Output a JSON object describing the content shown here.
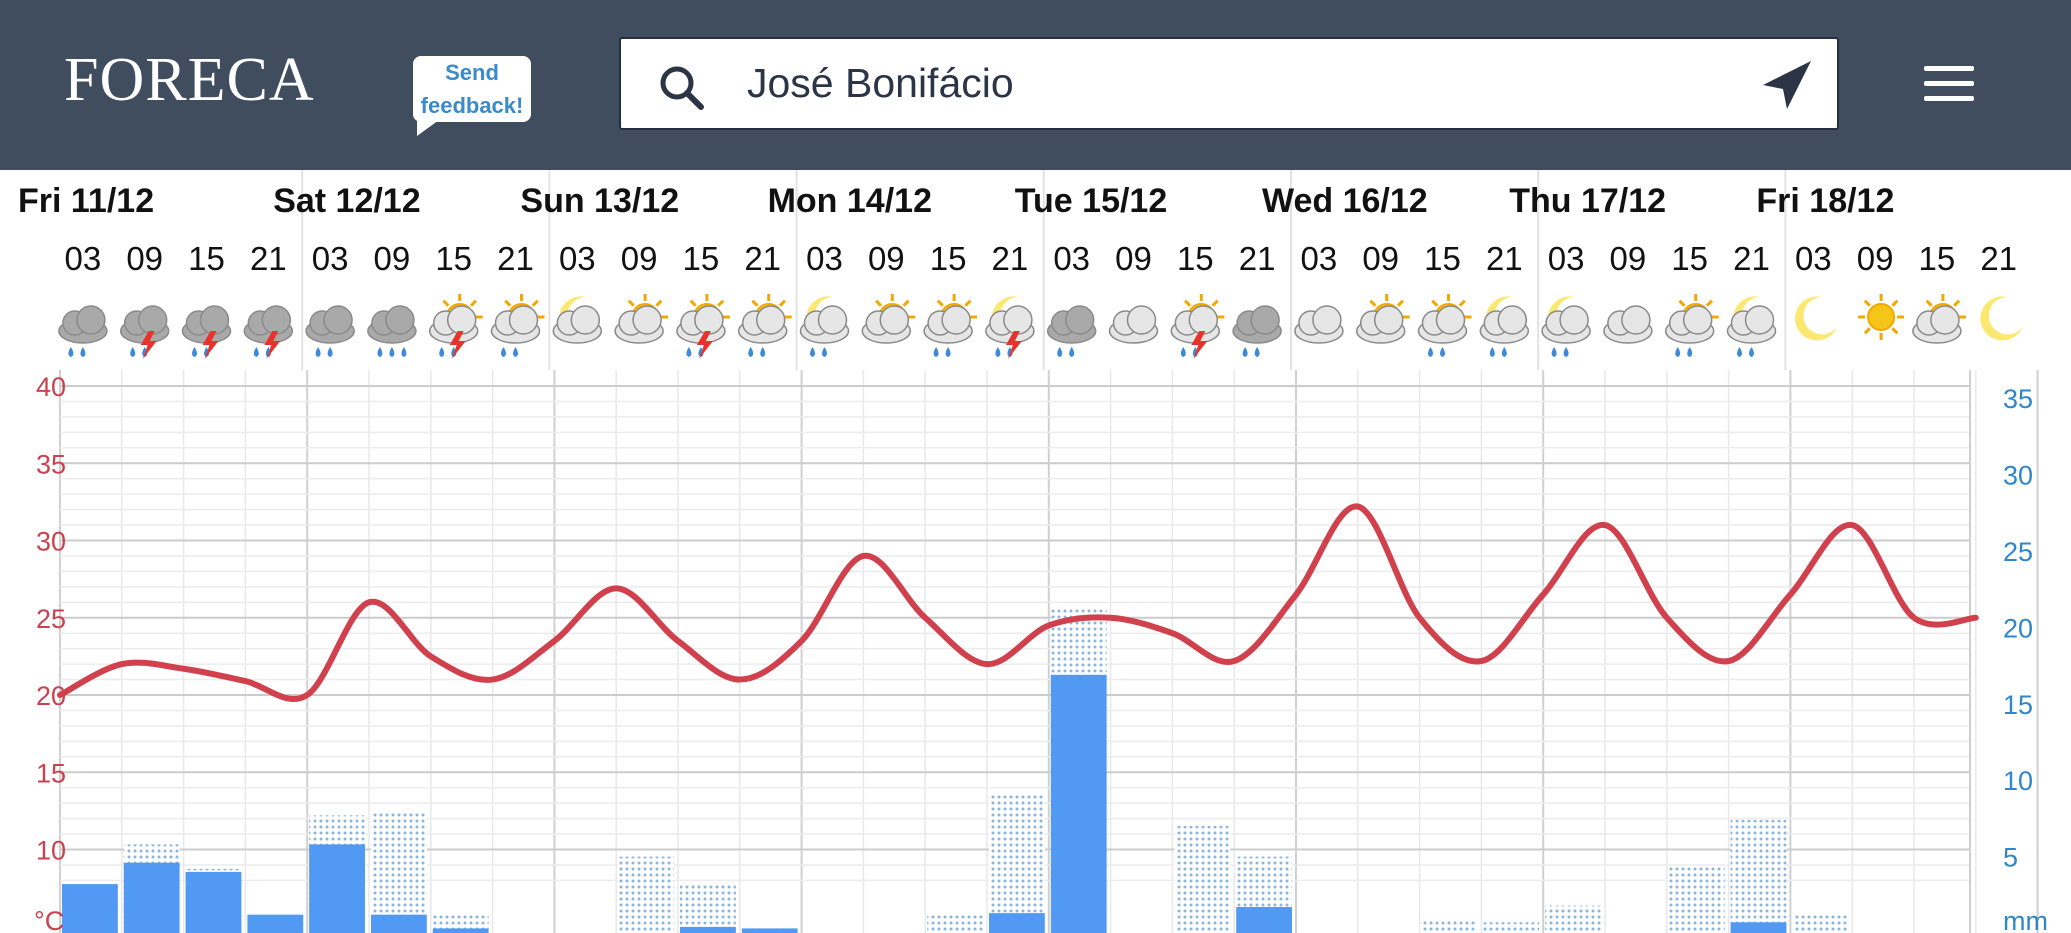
{
  "header": {
    "logo_text": "FORECA",
    "feedback_line1": "Send",
    "feedback_line2": "feedback!",
    "search_value": "José Bonifácio",
    "search_icon": "search-icon",
    "locate_icon": "location-arrow-icon",
    "menu_icon": "hamburger-menu-icon"
  },
  "colors": {
    "header_bg": "#3f4d5f",
    "temperature_line": "#d1414d",
    "precip_bar": "#5199f2",
    "precip_dotted": "#8ab6dd",
    "temp_axis": "#c8424f",
    "precip_axis": "#2f86c8"
  },
  "days": [
    {
      "label": "Fri 11/12",
      "hours": [
        "03",
        "09",
        "15",
        "21"
      ],
      "icons": [
        "cloud-rain",
        "thunderstorm-rain",
        "thunderstorm-rain",
        "thunderstorm-rain"
      ]
    },
    {
      "label": "Sat 12/12",
      "hours": [
        "03",
        "09",
        "15",
        "21"
      ],
      "icons": [
        "cloud-rain",
        "cloud-heavy-rain",
        "sun-thunder-rain",
        "sun-cloud-rain"
      ]
    },
    {
      "label": "Sun 13/12",
      "hours": [
        "03",
        "09",
        "15",
        "21"
      ],
      "icons": [
        "moon-cloud",
        "sun-cloud",
        "sun-thunder-rain",
        "sun-cloud-rain"
      ]
    },
    {
      "label": "Mon 14/12",
      "hours": [
        "03",
        "09",
        "15",
        "21"
      ],
      "icons": [
        "moon-cloud-rain",
        "sun-cloud",
        "sun-cloud-rain",
        "moon-thunder-rain"
      ]
    },
    {
      "label": "Tue 15/12",
      "hours": [
        "03",
        "09",
        "15",
        "21"
      ],
      "icons": [
        "cloud-rain",
        "cloud",
        "sun-thunder-rain",
        "cloud-rain"
      ]
    },
    {
      "label": "Wed 16/12",
      "hours": [
        "03",
        "09",
        "15",
        "21"
      ],
      "icons": [
        "cloud",
        "sun-cloud",
        "sun-cloud-rain",
        "moon-cloud-rain"
      ]
    },
    {
      "label": "Thu 17/12",
      "hours": [
        "03",
        "09",
        "15",
        "21"
      ],
      "icons": [
        "moon-cloud-rain",
        "cloud",
        "sun-cloud-rain",
        "moon-cloud-rain"
      ]
    },
    {
      "label": "Fri 18/12",
      "hours": [
        "03",
        "09",
        "15",
        "21"
      ],
      "icons": [
        "moon",
        "sun",
        "sun-cloud",
        "moon"
      ]
    }
  ],
  "chart_data": {
    "type": "line",
    "x": [
      "Fri 03",
      "Fri 09",
      "Fri 15",
      "Fri 21",
      "Sat 03",
      "Sat 09",
      "Sat 15",
      "Sat 21",
      "Sun 03",
      "Sun 09",
      "Sun 15",
      "Sun 21",
      "Mon 03",
      "Mon 09",
      "Mon 15",
      "Mon 21",
      "Tue 03",
      "Tue 09",
      "Tue 15",
      "Tue 21",
      "Wed 03",
      "Wed 09",
      "Wed 15",
      "Wed 21",
      "Thu 03",
      "Thu 09",
      "Thu 15",
      "Thu 21",
      "Fri 03",
      "Fri 09",
      "Fri 15",
      "Fri 21"
    ],
    "series": [
      {
        "unit": "°C",
        "values": [
          20,
          22,
          21.7,
          20.9,
          20,
          26,
          22.5,
          21,
          23.5,
          26.9,
          23.5,
          21,
          23.5,
          29,
          25,
          22,
          24.5,
          25,
          24,
          22.2,
          26.5,
          32.2,
          25,
          22.2,
          26.5,
          31,
          25,
          22.2,
          26.5,
          31,
          25,
          25
        ]
      },
      {
        "unit": "mm",
        "bar_values": [
          3.2,
          4.6,
          4.0,
          1.2,
          5.8,
          1.2,
          0.3,
          0,
          0,
          0,
          0.4,
          0.3,
          0,
          0,
          0,
          1.3,
          16.9,
          0,
          0,
          1.7,
          0,
          0,
          0,
          0,
          0,
          0,
          0,
          0.7,
          0,
          0,
          0,
          0
        ],
        "possible_values": [
          3.2,
          5.8,
          4.2,
          1.2,
          7.7,
          8.0,
          1.3,
          0,
          0,
          5.0,
          3.2,
          0.3,
          0,
          0,
          1.3,
          9.0,
          21.2,
          0,
          7.0,
          5.0,
          0,
          0,
          0.8,
          0.7,
          1.8,
          0,
          4.3,
          7.4,
          1.3,
          0,
          0,
          0
        ]
      }
    ],
    "y_left_ticks": [
      "40",
      "35",
      "30",
      "25",
      "20",
      "15",
      "10",
      "°C"
    ],
    "y_right_ticks": [
      "35",
      "30",
      "25",
      "20",
      "15",
      "10",
      "5",
      "mm"
    ],
    "ylim_temp": [
      7,
      40
    ],
    "ylim_precip": [
      0,
      35
    ],
    "grid": true
  }
}
